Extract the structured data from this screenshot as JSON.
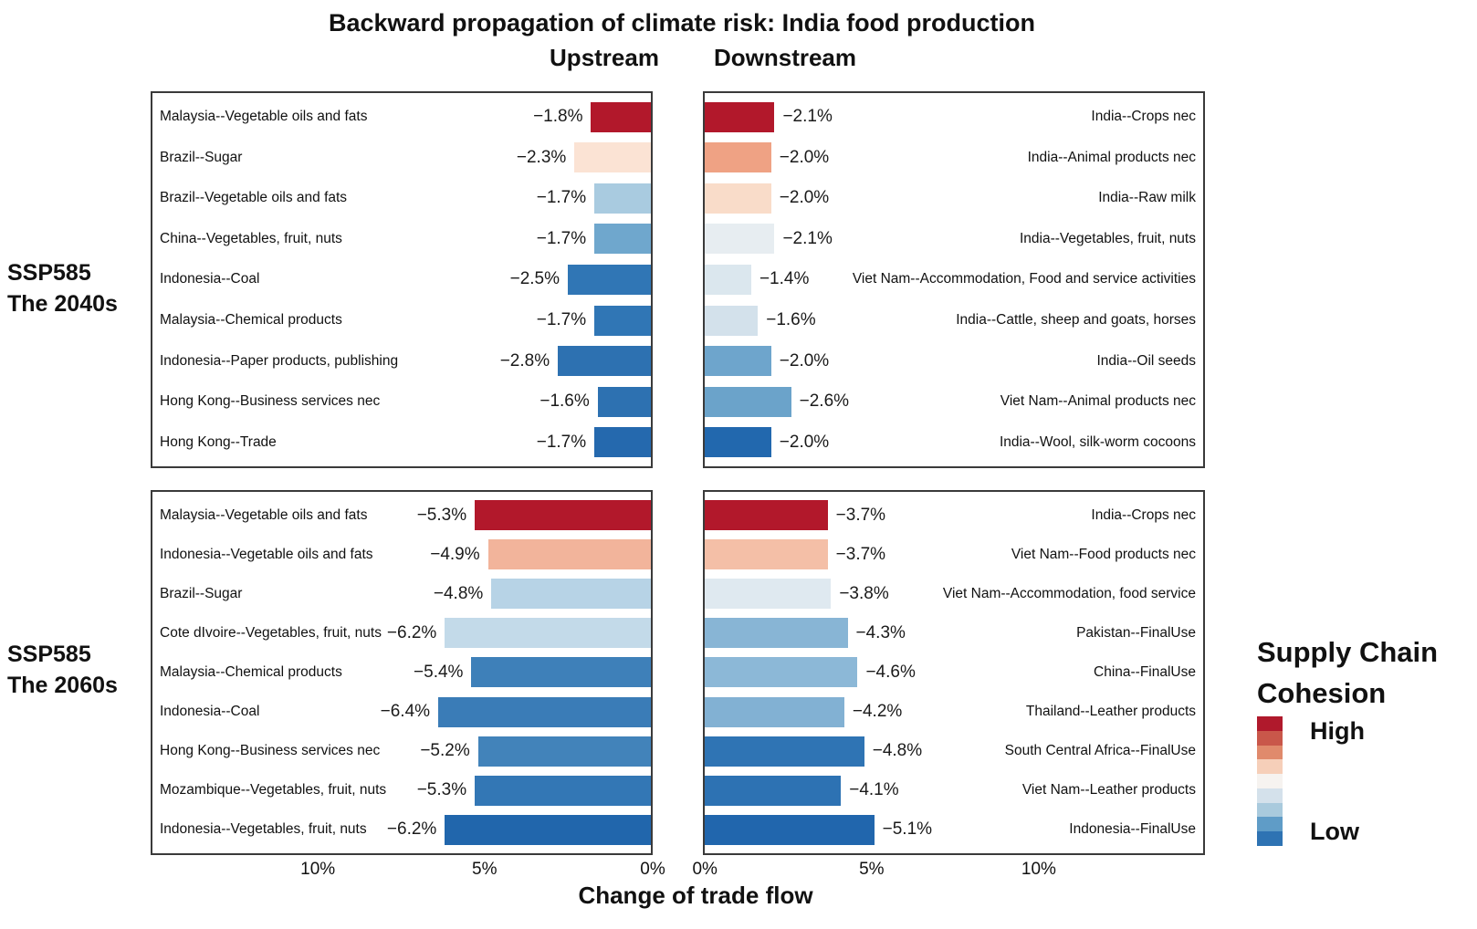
{
  "title": "Backward propagation of climate risk: India food production",
  "column_headers": {
    "upstream": "Upstream",
    "downstream": "Downstream"
  },
  "row_headers": [
    {
      "line1": "SSP585",
      "line2": "The 2040s"
    },
    {
      "line1": "SSP585",
      "line2": "The 2060s"
    }
  ],
  "xlabel": "Change of trade flow",
  "axis": {
    "max_abs_pct": 15,
    "left_ticks": [
      {
        "label": "10%",
        "pos": 0.333
      },
      {
        "label": "5%",
        "pos": 0.665
      },
      {
        "label": "0%",
        "pos": 1.0
      }
    ],
    "right_ticks": [
      {
        "label": "0%",
        "pos": 0.004
      },
      {
        "label": "5%",
        "pos": 0.336
      },
      {
        "label": "10%",
        "pos": 0.669
      }
    ]
  },
  "legend": {
    "title_line1": "Supply Chain",
    "title_line2": "Cohesion",
    "high_label": "High",
    "low_label": "Low",
    "colors": [
      "#b0192c",
      "#c9574a",
      "#e08a6c",
      "#f6cfb9",
      "#f6f3f0",
      "#d4e1eb",
      "#a9cadd",
      "#5f9cc7",
      "#2e73b3"
    ]
  },
  "chart_data": [
    {
      "type": "bar",
      "scenario": "SSP585 The 2040s",
      "side": "Upstream",
      "orientation": "horizontal, bars anchored to right edge, axis reversed 0% right to 15% left",
      "unit": "% change of trade flow",
      "rows": [
        {
          "label": "Malaysia--Vegetable oils and fats",
          "value": -1.8,
          "value_label": "−1.8%",
          "color": "#b2182b"
        },
        {
          "label": "Brazil--Sugar",
          "value": -2.3,
          "value_label": "−2.3%",
          "color": "#fbe3d4"
        },
        {
          "label": "Brazil--Vegetable oils and fats",
          "value": -1.7,
          "value_label": "−1.7%",
          "color": "#a9cbe0"
        },
        {
          "label": "China--Vegetables, fruit, nuts",
          "value": -1.7,
          "value_label": "−1.7%",
          "color": "#6fa7cd"
        },
        {
          "label": "Indonesia--Coal",
          "value": -2.5,
          "value_label": "−2.5%",
          "color": "#3076b5"
        },
        {
          "label": "Malaysia--Chemical products",
          "value": -1.7,
          "value_label": "−1.7%",
          "color": "#3076b5"
        },
        {
          "label": "Indonesia--Paper products, publishing",
          "value": -2.8,
          "value_label": "−2.8%",
          "color": "#2d71b1"
        },
        {
          "label": "Hong Kong--Business services nec",
          "value": -1.6,
          "value_label": "−1.6%",
          "color": "#2d71b1"
        },
        {
          "label": "Hong Kong--Trade",
          "value": -1.7,
          "value_label": "−1.7%",
          "color": "#2569ae"
        }
      ]
    },
    {
      "type": "bar",
      "scenario": "SSP585 The 2040s",
      "side": "Downstream",
      "orientation": "horizontal, bars anchored to left edge, axis 0% left to 15% right",
      "unit": "% change of trade flow",
      "rows": [
        {
          "label": "India--Crops nec",
          "value": -2.1,
          "value_label": "−2.1%",
          "color": "#b2182b"
        },
        {
          "label": "India--Animal products nec",
          "value": -2.0,
          "value_label": "−2.0%",
          "color": "#efa284"
        },
        {
          "label": "India--Raw milk",
          "value": -2.0,
          "value_label": "−2.0%",
          "color": "#f9dcc9"
        },
        {
          "label": "India--Vegetables, fruit, nuts",
          "value": -2.1,
          "value_label": "−2.1%",
          "color": "#e7edf1"
        },
        {
          "label": "Viet Nam--Accommodation, Food and service activities",
          "value": -1.4,
          "value_label": "−1.4%",
          "color": "#dbe7ee"
        },
        {
          "label": "India--Cattle, sheep and goats, horses",
          "value": -1.6,
          "value_label": "−1.6%",
          "color": "#d3e1eb"
        },
        {
          "label": "India--Oil seeds",
          "value": -2.0,
          "value_label": "−2.0%",
          "color": "#6ea5cc"
        },
        {
          "label": "Viet Nam--Animal products nec",
          "value": -2.6,
          "value_label": "−2.6%",
          "color": "#6ba3ca"
        },
        {
          "label": "India--Wool, silk-worm cocoons",
          "value": -2.0,
          "value_label": "−2.0%",
          "color": "#2268ae"
        }
      ]
    },
    {
      "type": "bar",
      "scenario": "SSP585 The 2060s",
      "side": "Upstream",
      "orientation": "horizontal, bars anchored to right edge, axis reversed 0% right to 15% left",
      "unit": "% change of trade flow",
      "rows": [
        {
          "label": "Malaysia--Vegetable oils and fats",
          "value": -5.3,
          "value_label": "−5.3%",
          "color": "#b2182b"
        },
        {
          "label": "Indonesia--Vegetable oils and fats",
          "value": -4.9,
          "value_label": "−4.9%",
          "color": "#f2b49b"
        },
        {
          "label": "Brazil--Sugar",
          "value": -4.8,
          "value_label": "−4.8%",
          "color": "#b7d3e6"
        },
        {
          "label": "Cote dIvoire--Vegetables, fruit, nuts",
          "value": -6.2,
          "value_label": "−6.2%",
          "color": "#c3dae9"
        },
        {
          "label": "Malaysia--Chemical products",
          "value": -5.4,
          "value_label": "−5.4%",
          "color": "#3e80b9"
        },
        {
          "label": "Indonesia--Coal",
          "value": -6.4,
          "value_label": "−6.4%",
          "color": "#3a7cb7"
        },
        {
          "label": "Hong Kong--Business services nec",
          "value": -5.2,
          "value_label": "−5.2%",
          "color": "#4283ba"
        },
        {
          "label": "Mozambique--Vegetables, fruit, nuts",
          "value": -5.3,
          "value_label": "−5.3%",
          "color": "#3377b5"
        },
        {
          "label": "Indonesia--Vegetables, fruit, nuts",
          "value": -6.2,
          "value_label": "−6.2%",
          "color": "#2166ac"
        }
      ]
    },
    {
      "type": "bar",
      "scenario": "SSP585 The 2060s",
      "side": "Downstream",
      "orientation": "horizontal, bars anchored to left edge, axis 0% left to 15% right",
      "unit": "% change of trade flow",
      "rows": [
        {
          "label": "India--Crops nec",
          "value": -3.7,
          "value_label": "−3.7%",
          "color": "#b2182b"
        },
        {
          "label": "Viet Nam--Food products nec",
          "value": -3.7,
          "value_label": "−3.7%",
          "color": "#f4bfa7"
        },
        {
          "label": "Viet Nam--Accommodation, food service",
          "value": -3.8,
          "value_label": "−3.8%",
          "color": "#dfe9f0"
        },
        {
          "label": "Pakistan--FinalUse",
          "value": -4.3,
          "value_label": "−4.3%",
          "color": "#88b5d5"
        },
        {
          "label": "China--FinalUse",
          "value": -4.6,
          "value_label": "−4.6%",
          "color": "#8cb8d7"
        },
        {
          "label": "Thailand--Leather products",
          "value": -4.2,
          "value_label": "−4.2%",
          "color": "#82b1d3"
        },
        {
          "label": "South Central Africa--FinalUse",
          "value": -4.8,
          "value_label": "−4.8%",
          "color": "#2f74b4"
        },
        {
          "label": "Viet Nam--Leather products",
          "value": -4.1,
          "value_label": "−4.1%",
          "color": "#2d72b3"
        },
        {
          "label": "Indonesia--FinalUse",
          "value": -5.1,
          "value_label": "−5.1%",
          "color": "#2166ad"
        }
      ]
    }
  ]
}
